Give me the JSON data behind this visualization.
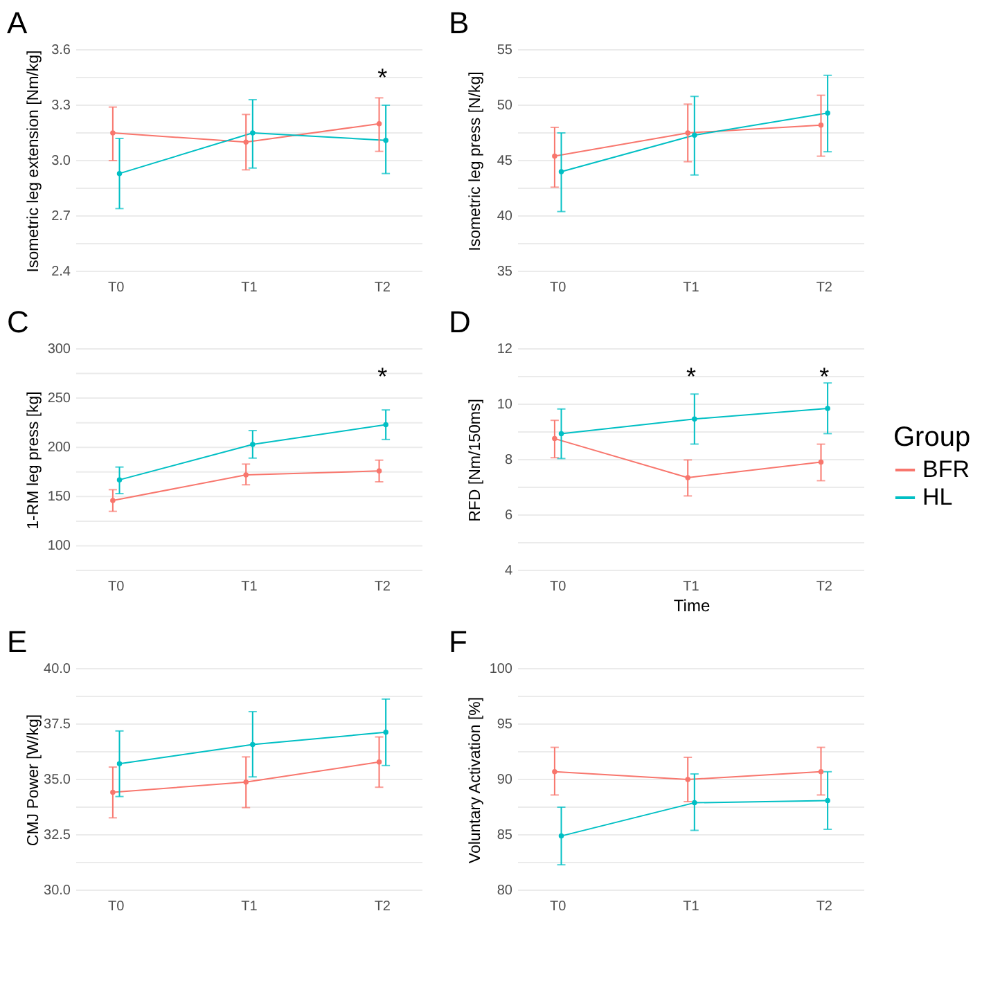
{
  "chart_data": [
    {
      "type": "line",
      "title": "A",
      "ylabel": "Isometric leg extension [Nm/kg]",
      "legend": "right",
      "categories": [
        "T0",
        "T1",
        "T2"
      ],
      "ylim": [
        2.4,
        3.6
      ],
      "yticks": [
        {
          "value": 2.4,
          "label": "2.4"
        },
        {
          "value": 2.55,
          "label": null
        },
        {
          "value": 2.7,
          "label": "2.7"
        },
        {
          "value": 2.85,
          "label": null
        },
        {
          "value": 3.0,
          "label": "3.0"
        },
        {
          "value": 3.15,
          "label": null
        },
        {
          "value": 3.3,
          "label": "3.3"
        },
        {
          "value": 3.45,
          "label": null
        },
        {
          "value": 3.6,
          "label": "3.6"
        }
      ],
      "grid": "y",
      "marker": "circle",
      "line_style": "solid",
      "annotations": [
        "*"
      ],
      "series": [
        {
          "name": "BFR",
          "color": "#f8766d",
          "values": [
            3.15,
            3.1,
            3.2
          ],
          "errors": [
            [
              3.0,
              3.29
            ],
            [
              2.95,
              3.25
            ],
            [
              3.05,
              3.34
            ]
          ]
        },
        {
          "name": "HL",
          "color": "#00bfc4",
          "values": [
            2.93,
            3.15,
            3.11
          ],
          "errors": [
            [
              2.74,
              3.12
            ],
            [
              2.96,
              3.33
            ],
            [
              2.93,
              3.3
            ]
          ]
        }
      ]
    },
    {
      "type": "line",
      "title": "B",
      "ylabel": "Isometric leg press [N/kg]",
      "legend": "right",
      "categories": [
        "T0",
        "T1",
        "T2"
      ],
      "ylim": [
        35,
        55
      ],
      "yticks": [
        35,
        {
          "value": 37.5,
          "label": null
        },
        40,
        {
          "value": 42.5,
          "label": null
        },
        45,
        {
          "value": 47.5,
          "label": null
        },
        50,
        {
          "value": 52.5,
          "label": null
        },
        55
      ],
      "grid": "y",
      "marker": "circle",
      "line_style": "solid",
      "series": [
        {
          "name": "BFR",
          "color": "#f8766d",
          "values": [
            45.4,
            47.5,
            48.2
          ],
          "errors": [
            [
              42.6,
              48.0
            ],
            [
              44.9,
              50.1
            ],
            [
              45.4,
              50.9
            ]
          ]
        },
        {
          "name": "HL",
          "color": "#00bfc4",
          "values": [
            44.0,
            47.3,
            49.3
          ],
          "errors": [
            [
              40.4,
              47.5
            ],
            [
              43.7,
              50.8
            ],
            [
              45.8,
              52.7
            ]
          ]
        }
      ]
    },
    {
      "type": "line",
      "title": "C",
      "ylabel": "1-RM leg press [kg]",
      "legend": "right",
      "categories": [
        "T0",
        "T1",
        "T2"
      ],
      "ylim": [
        75,
        300
      ],
      "yticks": [
        {
          "value": 75,
          "label": null
        },
        100,
        {
          "value": 125,
          "label": null
        },
        150,
        {
          "value": 175,
          "label": null
        },
        200,
        {
          "value": 225,
          "label": null
        },
        250,
        {
          "value": 275,
          "label": null
        },
        300
      ],
      "grid": "y",
      "marker": "circle",
      "line_style": "solid",
      "annotations": [
        "*"
      ],
      "series": [
        {
          "name": "BFR",
          "color": "#f8766d",
          "values": [
            146,
            172,
            176
          ],
          "errors": [
            [
              135,
              157
            ],
            [
              162,
              183
            ],
            [
              165,
              187
            ]
          ]
        },
        {
          "name": "HL",
          "color": "#00bfc4",
          "values": [
            167,
            203,
            223
          ],
          "errors": [
            [
              153,
              180
            ],
            [
              189,
              217
            ],
            [
              208,
              238
            ]
          ]
        }
      ]
    },
    {
      "type": "line",
      "title": "D",
      "xlabel": "Time",
      "ylabel": "RFD [Nm/150ms]",
      "legend_title": "Group",
      "legend": "right",
      "categories": [
        "T0",
        "T1",
        "T2"
      ],
      "ylim": [
        4,
        12
      ],
      "yticks": [
        4,
        {
          "value": 5,
          "label": null
        },
        6,
        {
          "value": 7,
          "label": null
        },
        8,
        {
          "value": 9,
          "label": null
        },
        10,
        {
          "value": 11,
          "label": null
        },
        12
      ],
      "grid": "y",
      "marker": "circle",
      "line_style": "solid",
      "annotations": [
        "*",
        "*"
      ],
      "series": [
        {
          "name": "BFR",
          "color": "#f8766d",
          "values": [
            8.76,
            7.35,
            7.91
          ],
          "errors": [
            [
              8.07,
              9.42
            ],
            [
              6.69,
              7.99
            ],
            [
              7.24,
              8.56
            ]
          ]
        },
        {
          "name": "HL",
          "color": "#00bfc4",
          "values": [
            8.94,
            9.47,
            9.85
          ],
          "errors": [
            [
              8.04,
              9.83
            ],
            [
              8.56,
              10.37
            ],
            [
              8.94,
              10.77
            ]
          ]
        }
      ]
    },
    {
      "type": "line",
      "title": "E",
      "ylabel": "CMJ Power [W/kg]",
      "legend": "right",
      "categories": [
        "T0",
        "T1",
        "T2"
      ],
      "ylim": [
        30,
        40
      ],
      "yticks": [
        {
          "value": 30,
          "label": "30.0"
        },
        {
          "value": 31.25,
          "label": null
        },
        {
          "value": 32.5,
          "label": "32.5"
        },
        {
          "value": 33.75,
          "label": null
        },
        {
          "value": 35,
          "label": "35.0"
        },
        {
          "value": 36.25,
          "label": null
        },
        {
          "value": 37.5,
          "label": "37.5"
        },
        {
          "value": 38.75,
          "label": null
        },
        {
          "value": 40,
          "label": "40.0"
        }
      ],
      "grid": "y",
      "marker": "circle",
      "line_style": "solid",
      "series": [
        {
          "name": "BFR",
          "color": "#f8766d",
          "values": [
            34.42,
            34.88,
            35.79
          ],
          "errors": [
            [
              33.27,
              35.56
            ],
            [
              33.73,
              36.02
            ],
            [
              34.65,
              36.92
            ]
          ]
        },
        {
          "name": "HL",
          "color": "#00bfc4",
          "values": [
            35.71,
            36.58,
            37.13
          ],
          "errors": [
            [
              34.23,
              37.19
            ],
            [
              35.12,
              38.06
            ],
            [
              35.63,
              38.63
            ]
          ]
        }
      ]
    },
    {
      "type": "line",
      "title": "F",
      "ylabel": "Voluntary Activation [%]",
      "legend": "right",
      "categories": [
        "T0",
        "T1",
        "T2"
      ],
      "ylim": [
        80,
        100
      ],
      "yticks": [
        80,
        {
          "value": 82.5,
          "label": null
        },
        85,
        {
          "value": 87.5,
          "label": null
        },
        90,
        {
          "value": 92.5,
          "label": null
        },
        95,
        {
          "value": 97.5,
          "label": null
        },
        100
      ],
      "grid": "y",
      "marker": "circle",
      "line_style": "solid",
      "series": [
        {
          "name": "BFR",
          "color": "#f8766d",
          "values": [
            90.7,
            90.0,
            90.7
          ],
          "errors": [
            [
              88.6,
              92.9
            ],
            [
              88.0,
              92.0
            ],
            [
              88.6,
              92.9
            ]
          ]
        },
        {
          "name": "HL",
          "color": "#00bfc4",
          "values": [
            84.9,
            87.9,
            88.1
          ],
          "errors": [
            [
              82.3,
              87.5
            ],
            [
              85.4,
              90.5
            ],
            [
              85.5,
              90.7
            ]
          ]
        }
      ]
    }
  ]
}
